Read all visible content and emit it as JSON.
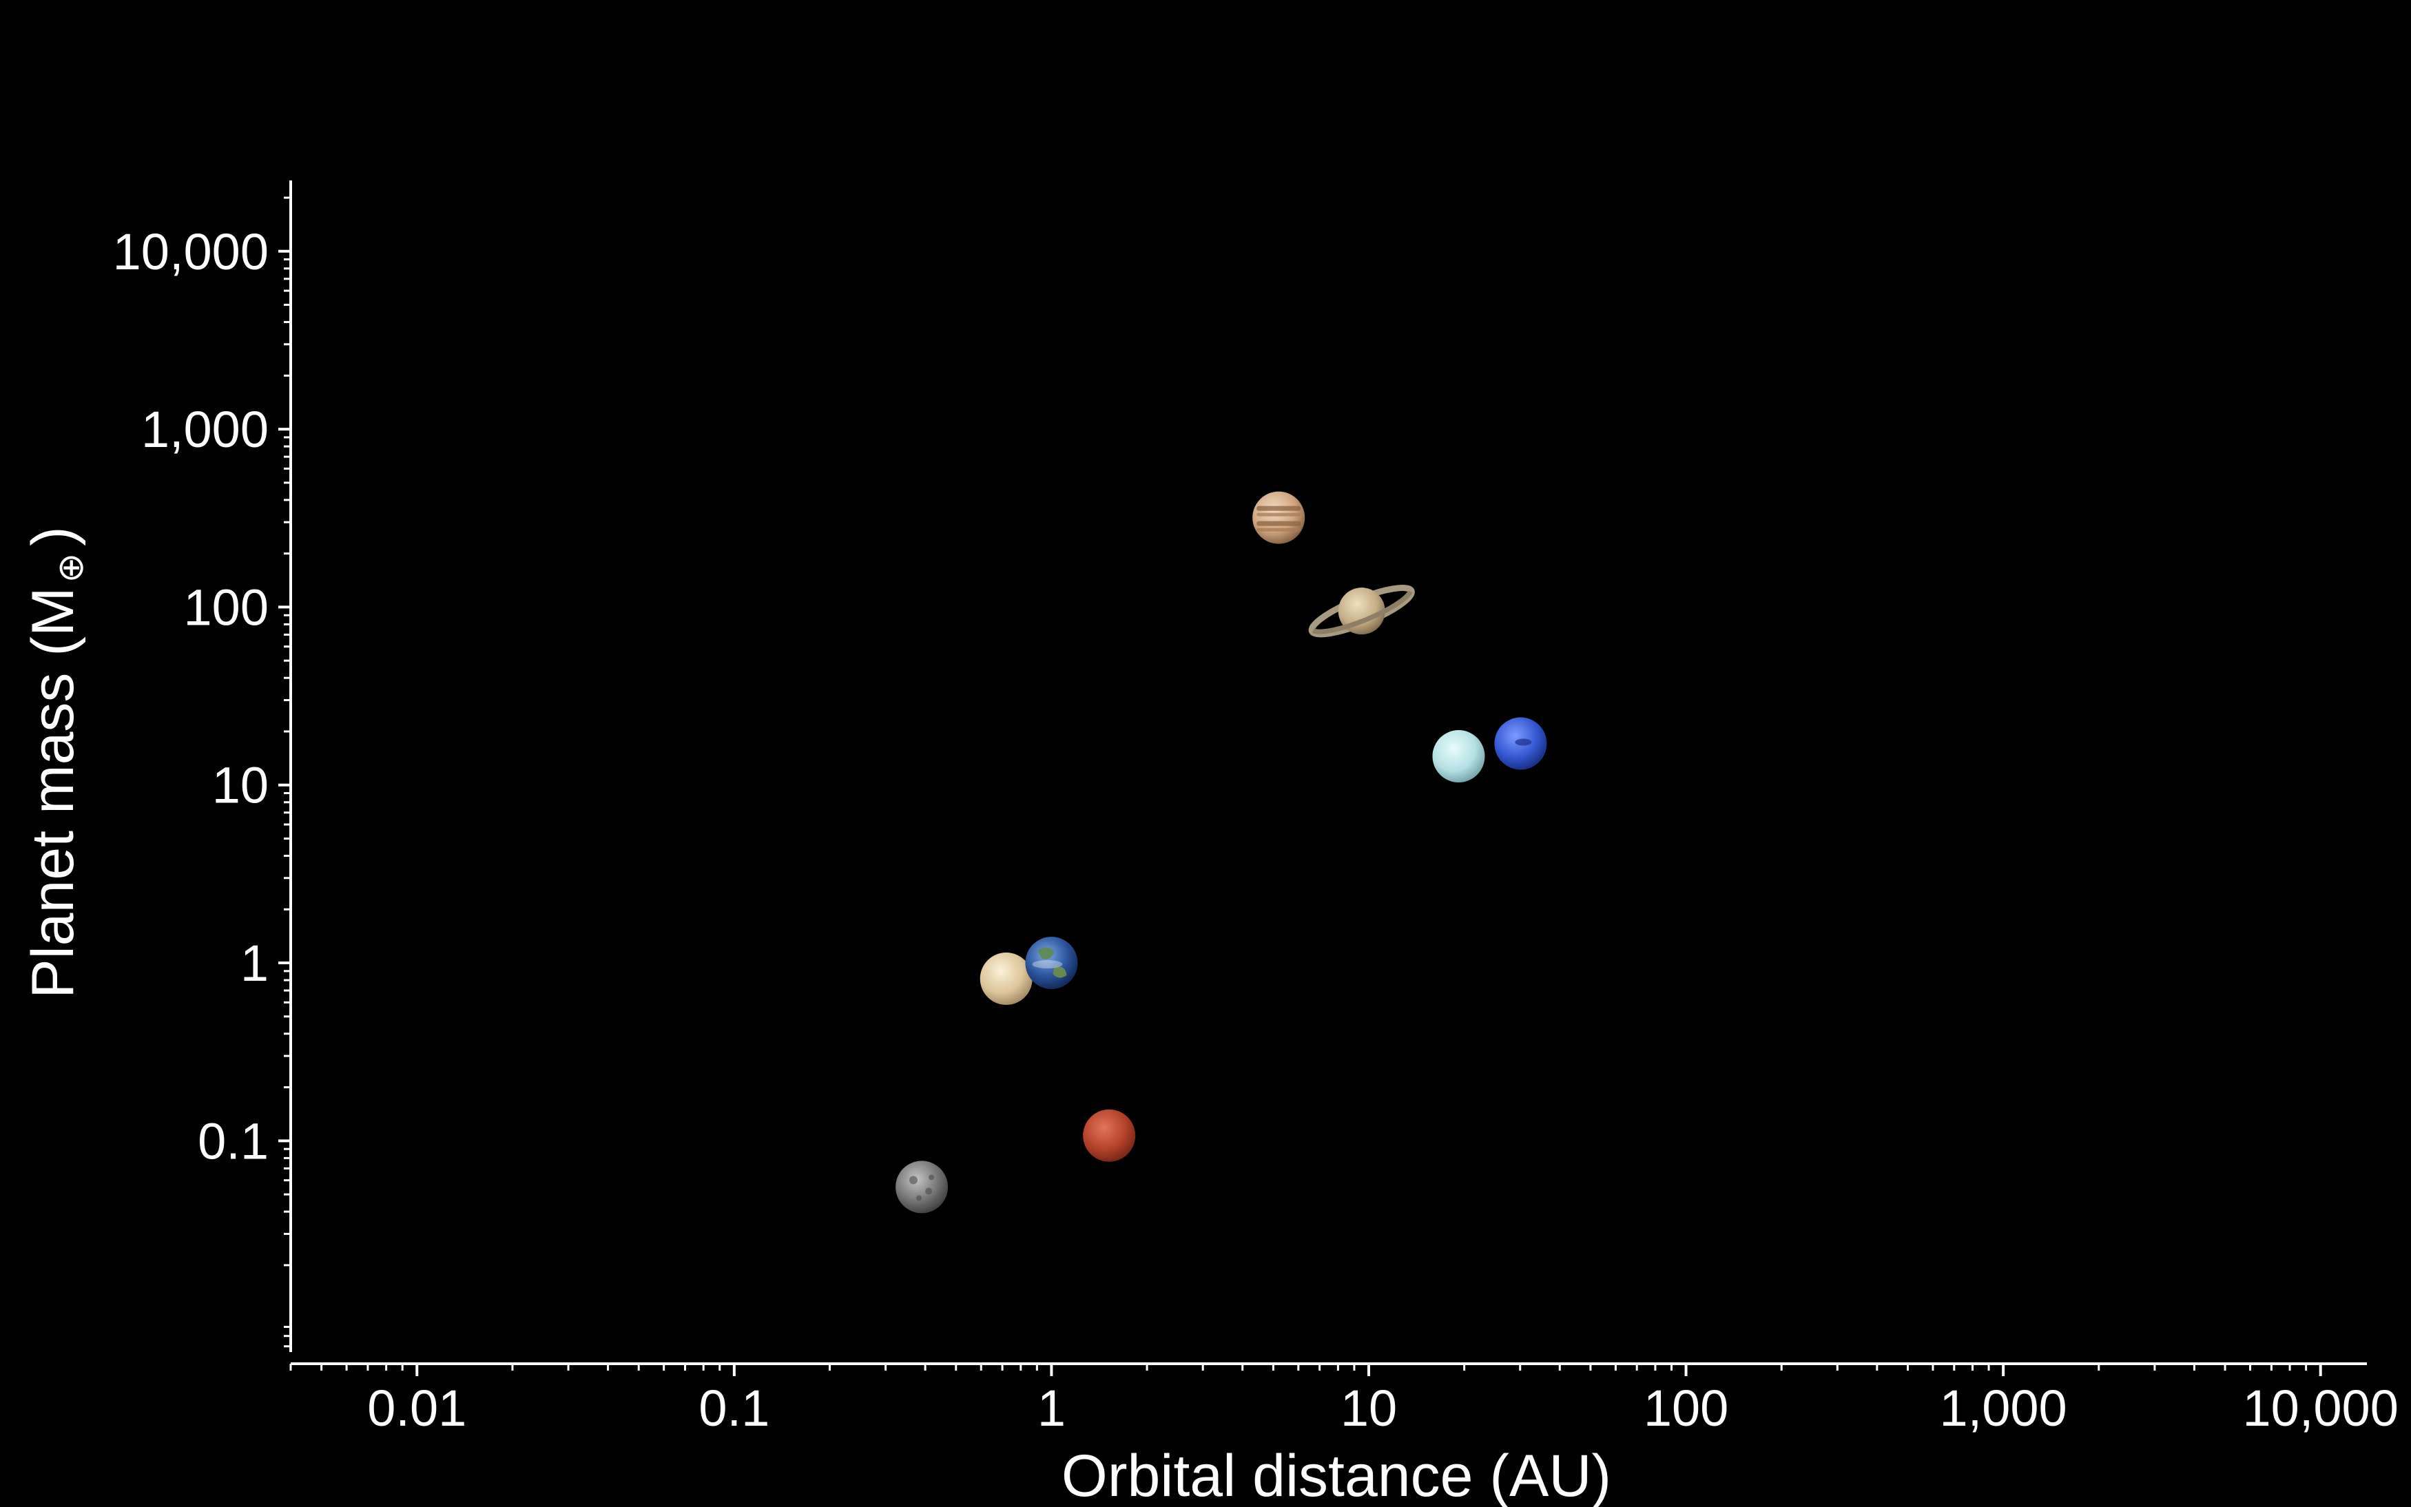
{
  "chart_data": {
    "type": "scatter",
    "title": "",
    "xlabel": "Orbital distance (AU)",
    "ylabel_main": "Planet mass (M",
    "ylabel_symbol": "⊕",
    "ylabel_close": ")",
    "x_scale": "log",
    "y_scale": "log",
    "xlim": [
      0.004,
      14000
    ],
    "ylim": [
      0.0065,
      25000
    ],
    "grid": false,
    "legend": "none",
    "x_ticks": [
      {
        "value": 0.01,
        "label": "0.01"
      },
      {
        "value": 0.1,
        "label": "0.1"
      },
      {
        "value": 1,
        "label": "1"
      },
      {
        "value": 10,
        "label": "10"
      },
      {
        "value": 100,
        "label": "100"
      },
      {
        "value": 1000,
        "label": "1,000"
      },
      {
        "value": 10000,
        "label": "10,000"
      }
    ],
    "y_ticks": [
      {
        "value": 0.1,
        "label": "0.1"
      },
      {
        "value": 1,
        "label": "1"
      },
      {
        "value": 10,
        "label": "10"
      },
      {
        "value": 100,
        "label": "100"
      },
      {
        "value": 1000,
        "label": "1,000"
      },
      {
        "value": 10000,
        "label": "10,000"
      }
    ],
    "points": [
      {
        "x": 0.39,
        "y": 0.055,
        "icon": "mercury-icon",
        "color": "#8e8e8e"
      },
      {
        "x": 0.72,
        "y": 0.815,
        "icon": "venus-icon",
        "color": "#e3d3b0"
      },
      {
        "x": 1.0,
        "y": 1.0,
        "icon": "earth-icon",
        "color": "#2f5fa8"
      },
      {
        "x": 1.52,
        "y": 0.107,
        "icon": "mars-icon",
        "color": "#b5432a"
      },
      {
        "x": 5.2,
        "y": 318,
        "icon": "jupiter-icon",
        "color": "#d7b493"
      },
      {
        "x": 9.5,
        "y": 95,
        "icon": "saturn-icon",
        "color": "#c9b28c"
      },
      {
        "x": 19.2,
        "y": 14.5,
        "icon": "uranus-icon",
        "color": "#bfe6e8"
      },
      {
        "x": 30.1,
        "y": 17.1,
        "icon": "neptune-icon",
        "color": "#3d62d8"
      }
    ]
  }
}
